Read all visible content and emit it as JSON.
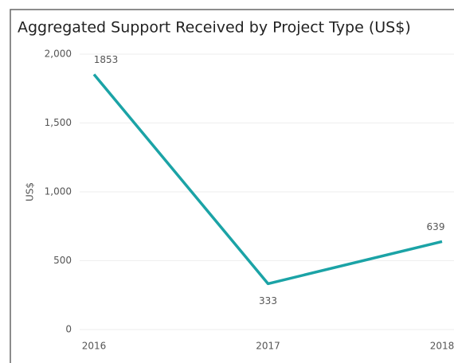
{
  "chart_data": {
    "type": "line",
    "title": "Aggregated Support Received by Project Type (US$)",
    "y_label": "US$",
    "categories": [
      "2016",
      "2017",
      "2018"
    ],
    "values": [
      1853,
      333,
      639
    ],
    "color": "#1ba3a6",
    "ylim": [
      0,
      2000
    ],
    "yticks": [
      0,
      500,
      {
        "value": 1000,
        "label": "1,000"
      },
      {
        "value": 1500,
        "label": "1,500"
      },
      {
        "value": 2000,
        "label": "2,000"
      }
    ],
    "grid": true
  }
}
